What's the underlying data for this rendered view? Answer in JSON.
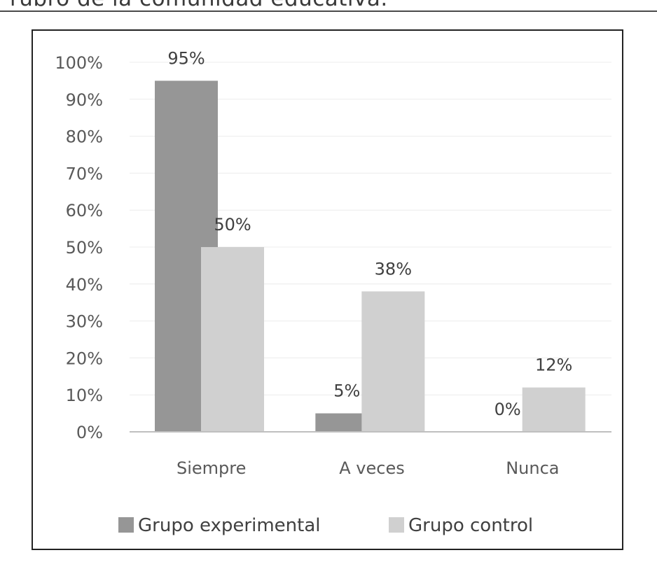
{
  "caption": "rubro de la comunidad educativa.",
  "chart_data": {
    "type": "bar",
    "categories": [
      "Siempre",
      "A veces",
      "Nunca"
    ],
    "series": [
      {
        "name": "Grupo experimental",
        "values": [
          95,
          5,
          0
        ],
        "labels": [
          "95%",
          "5%",
          "0%"
        ],
        "color": "#969696"
      },
      {
        "name": "Grupo control",
        "values": [
          50,
          38,
          12
        ],
        "labels": [
          "50%",
          "38%",
          "12%"
        ],
        "color": "#d0d0d0"
      }
    ],
    "yticks": [
      "0%",
      "10%",
      "20%",
      "30%",
      "40%",
      "50%",
      "60%",
      "70%",
      "80%",
      "90%",
      "100%"
    ],
    "ylim": [
      0,
      100
    ],
    "grid": true,
    "legend": "bottom"
  }
}
